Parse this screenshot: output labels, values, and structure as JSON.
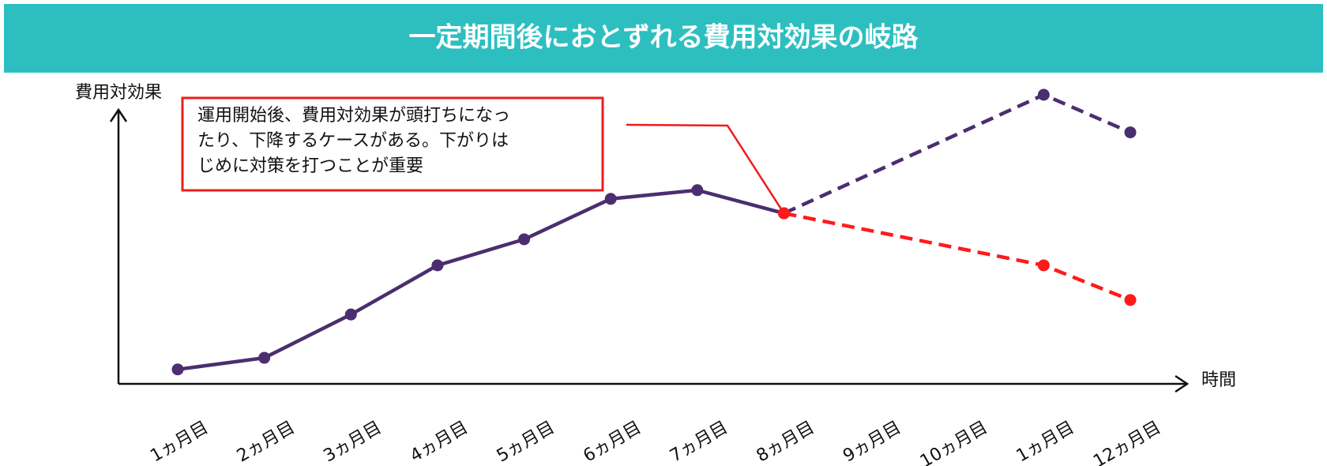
{
  "chart_data": {
    "type": "line",
    "title": "一定期間後におとずれる費用対効果の岐路",
    "y_label": "費用対効果",
    "x_label": "時間",
    "annotation": [
      "運用開始後、費用対効果が頭打ちになっ",
      "たり、下降するケースがある。下がりは",
      "じめに対策を打つことが重要"
    ],
    "categories": [
      "1ヵ月目",
      "2ヵ月目",
      "3ヵ月目",
      "4ヵ月目",
      "5ヵ月目",
      "6ヵ月目",
      "7ヵ月目",
      "8ヵ月目",
      "9ヵ月目",
      "10ヵ月目",
      "1ヵ月目",
      "12ヵ月目"
    ],
    "ylim": [
      0,
      100
    ],
    "series": [
      {
        "color": "#4b2e6f",
        "dashed": false,
        "x": [
          0,
          1,
          2,
          3,
          4,
          5,
          6,
          7
        ],
        "values": [
          5,
          9,
          24,
          41,
          50,
          64,
          67,
          59
        ]
      },
      {
        "color": "#4b2e6f",
        "dashed": true,
        "x": [
          7,
          10,
          11
        ],
        "values": [
          59,
          100,
          87
        ]
      },
      {
        "color": "#ff1a1a",
        "dashed": true,
        "x": [
          7,
          10,
          11
        ],
        "values": [
          59,
          41,
          29
        ]
      }
    ],
    "annotation_color": "#ee1c1c",
    "title_background": "#2dbfc0"
  }
}
